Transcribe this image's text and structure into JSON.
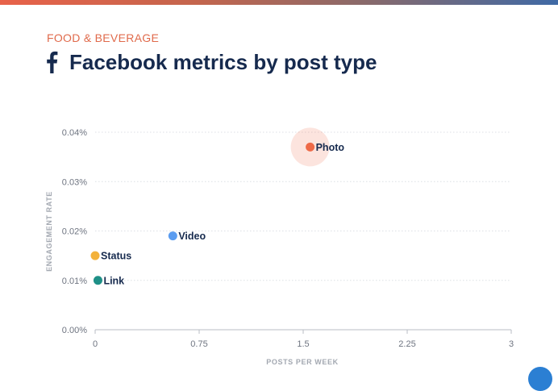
{
  "header": {
    "category": "FOOD & BEVERAGE",
    "title": "Facebook metrics by post type"
  },
  "colors": {
    "accent": "#e06a4b",
    "title": "#162a4e",
    "photo": "#ee6a48",
    "video": "#5a9cf0",
    "status": "#f3b23b",
    "link": "#1f9087"
  },
  "chart_data": {
    "type": "scatter",
    "xlabel": "POSTS PER WEEK",
    "ylabel": "ENGAGEMENT RATE",
    "xlim": [
      0,
      3
    ],
    "ylim": [
      0,
      0.04
    ],
    "x_ticks": [
      {
        "value": 0,
        "label": "0"
      },
      {
        "value": 0.75,
        "label": "0.75"
      },
      {
        "value": 1.5,
        "label": "1.5"
      },
      {
        "value": 2.25,
        "label": "2.25"
      },
      {
        "value": 3,
        "label": "3"
      }
    ],
    "y_ticks": [
      {
        "value": 0,
        "label": "0.00%"
      },
      {
        "value": 0.01,
        "label": "0.01%"
      },
      {
        "value": 0.02,
        "label": "0.02%"
      },
      {
        "value": 0.03,
        "label": "0.03%"
      },
      {
        "value": 0.04,
        "label": "0.04%"
      }
    ],
    "grid": "horizontal dotted",
    "points": [
      {
        "label": "Photo",
        "x": 1.55,
        "y": 0.037,
        "color": "#ee6a48",
        "highlight": true
      },
      {
        "label": "Video",
        "x": 0.56,
        "y": 0.019,
        "color": "#5a9cf0"
      },
      {
        "label": "Status",
        "x": 0.0,
        "y": 0.015,
        "color": "#f3b23b"
      },
      {
        "label": "Link",
        "x": 0.02,
        "y": 0.01,
        "color": "#1f9087"
      }
    ]
  }
}
